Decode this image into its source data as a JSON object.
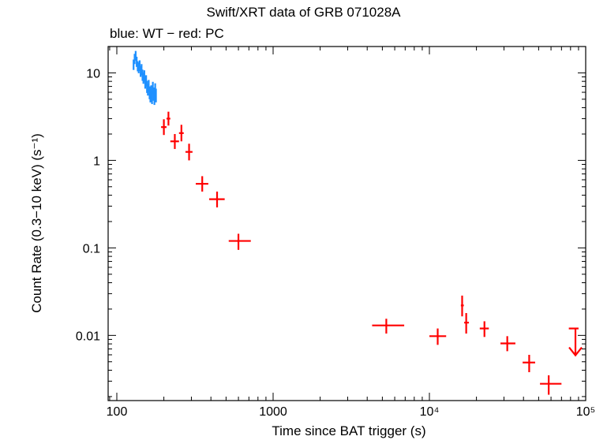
{
  "chart_data": {
    "type": "scatter",
    "title": "Swift/XRT data of GRB 071028A",
    "subtitle": "blue: WT − red: PC",
    "xlabel": "Time since BAT trigger (s)",
    "ylabel": "Count Rate (0.3−10 keV) (s⁻¹)",
    "xscale": "log",
    "yscale": "log",
    "xlim": [
      88,
      100000
    ],
    "ylim": [
      0.0018,
      20
    ],
    "x_ticks": [
      {
        "value": 100,
        "label": "100"
      },
      {
        "value": 1000,
        "label": "1000"
      },
      {
        "value": 10000,
        "label": "10⁴"
      },
      {
        "value": 100000,
        "label": "10⁵"
      }
    ],
    "y_ticks": [
      {
        "value": 0.01,
        "label": "0.01"
      },
      {
        "value": 0.1,
        "label": "0.1"
      },
      {
        "value": 1,
        "label": "1"
      },
      {
        "value": 10,
        "label": "10"
      }
    ],
    "series": [
      {
        "name": "WT",
        "color": "#1e90ff",
        "points": [
          {
            "x": 128,
            "y": 12.5,
            "xlo": 127,
            "xhi": 129,
            "ylo": 10.8,
            "yhi": 14.2
          },
          {
            "x": 130,
            "y": 14.5,
            "xlo": 129,
            "xhi": 131,
            "ylo": 12.6,
            "yhi": 16.5
          },
          {
            "x": 132,
            "y": 15.8,
            "xlo": 131,
            "xhi": 133,
            "ylo": 13.8,
            "yhi": 17.8
          },
          {
            "x": 134,
            "y": 13.5,
            "xlo": 133,
            "xhi": 135,
            "ylo": 11.7,
            "yhi": 15.3
          },
          {
            "x": 136,
            "y": 12.0,
            "xlo": 135,
            "xhi": 137,
            "ylo": 10.4,
            "yhi": 13.6
          },
          {
            "x": 138,
            "y": 11.5,
            "xlo": 137,
            "xhi": 139,
            "ylo": 9.9,
            "yhi": 13.1
          },
          {
            "x": 140,
            "y": 12.2,
            "xlo": 139,
            "xhi": 141,
            "ylo": 10.5,
            "yhi": 13.9
          },
          {
            "x": 142,
            "y": 10.5,
            "xlo": 141,
            "xhi": 143,
            "ylo": 9.0,
            "yhi": 12.0
          },
          {
            "x": 144,
            "y": 11.0,
            "xlo": 143,
            "xhi": 145,
            "ylo": 9.4,
            "yhi": 12.6
          },
          {
            "x": 146,
            "y": 9.5,
            "xlo": 145,
            "xhi": 147,
            "ylo": 8.1,
            "yhi": 10.9
          },
          {
            "x": 148,
            "y": 8.8,
            "xlo": 147,
            "xhi": 149,
            "ylo": 7.5,
            "yhi": 10.1
          },
          {
            "x": 150,
            "y": 9.3,
            "xlo": 149,
            "xhi": 151,
            "ylo": 7.9,
            "yhi": 10.7
          },
          {
            "x": 152,
            "y": 7.8,
            "xlo": 151,
            "xhi": 153,
            "ylo": 6.6,
            "yhi": 9.0
          },
          {
            "x": 154,
            "y": 8.2,
            "xlo": 153,
            "xhi": 155,
            "ylo": 7.0,
            "yhi": 9.4
          },
          {
            "x": 156,
            "y": 7.0,
            "xlo": 155,
            "xhi": 157,
            "ylo": 5.9,
            "yhi": 8.1
          },
          {
            "x": 158,
            "y": 6.5,
            "xlo": 157,
            "xhi": 159,
            "ylo": 5.5,
            "yhi": 7.5
          },
          {
            "x": 160,
            "y": 7.2,
            "xlo": 159,
            "xhi": 161,
            "ylo": 6.1,
            "yhi": 8.3
          },
          {
            "x": 162,
            "y": 6.0,
            "xlo": 161,
            "xhi": 163,
            "ylo": 5.0,
            "yhi": 7.0
          },
          {
            "x": 164,
            "y": 5.5,
            "xlo": 163,
            "xhi": 165,
            "ylo": 4.6,
            "yhi": 6.4
          },
          {
            "x": 166,
            "y": 6.2,
            "xlo": 165,
            "xhi": 167,
            "ylo": 5.2,
            "yhi": 7.2
          },
          {
            "x": 168,
            "y": 5.3,
            "xlo": 167,
            "xhi": 169,
            "ylo": 4.4,
            "yhi": 6.2
          },
          {
            "x": 170,
            "y": 6.8,
            "xlo": 169,
            "xhi": 171,
            "ylo": 5.7,
            "yhi": 7.9
          },
          {
            "x": 172,
            "y": 5.8,
            "xlo": 171,
            "xhi": 173,
            "ylo": 4.8,
            "yhi": 6.8
          },
          {
            "x": 174,
            "y": 5.2,
            "xlo": 173,
            "xhi": 175,
            "ylo": 4.3,
            "yhi": 6.1
          },
          {
            "x": 176,
            "y": 6.5,
            "xlo": 175,
            "xhi": 177,
            "ylo": 5.4,
            "yhi": 7.6
          },
          {
            "x": 178,
            "y": 5.6,
            "xlo": 177,
            "xhi": 179,
            "ylo": 4.6,
            "yhi": 6.6
          }
        ]
      },
      {
        "name": "PC",
        "color": "#ff0000",
        "points": [
          {
            "x": 200,
            "y": 2.4,
            "xlo": 192,
            "xhi": 208,
            "ylo": 1.95,
            "yhi": 2.95
          },
          {
            "x": 214,
            "y": 3.0,
            "xlo": 208,
            "xhi": 220,
            "ylo": 2.5,
            "yhi": 3.6
          },
          {
            "x": 235,
            "y": 1.65,
            "xlo": 220,
            "xhi": 250,
            "ylo": 1.35,
            "yhi": 2.0
          },
          {
            "x": 259,
            "y": 2.05,
            "xlo": 250,
            "xhi": 268,
            "ylo": 1.65,
            "yhi": 2.55
          },
          {
            "x": 290,
            "y": 1.25,
            "xlo": 275,
            "xhi": 305,
            "ylo": 1.0,
            "yhi": 1.55
          },
          {
            "x": 352,
            "y": 0.54,
            "xlo": 320,
            "xhi": 385,
            "ylo": 0.44,
            "yhi": 0.66
          },
          {
            "x": 438,
            "y": 0.36,
            "xlo": 390,
            "xhi": 490,
            "ylo": 0.29,
            "yhi": 0.44
          },
          {
            "x": 600,
            "y": 0.12,
            "xlo": 520,
            "xhi": 720,
            "ylo": 0.095,
            "yhi": 0.145
          },
          {
            "x": 5300,
            "y": 0.013,
            "xlo": 4300,
            "xhi": 6900,
            "ylo": 0.0105,
            "yhi": 0.0155
          },
          {
            "x": 11300,
            "y": 0.0098,
            "xlo": 10000,
            "xhi": 12800,
            "ylo": 0.0078,
            "yhi": 0.012
          },
          {
            "x": 16200,
            "y": 0.022,
            "xlo": 15900,
            "xhi": 16600,
            "ylo": 0.0165,
            "yhi": 0.0285
          },
          {
            "x": 17200,
            "y": 0.014,
            "xlo": 16700,
            "xhi": 17900,
            "ylo": 0.0105,
            "yhi": 0.018
          },
          {
            "x": 22500,
            "y": 0.012,
            "xlo": 21000,
            "xhi": 24000,
            "ylo": 0.0096,
            "yhi": 0.0145
          },
          {
            "x": 31500,
            "y": 0.0081,
            "xlo": 28500,
            "xhi": 35500,
            "ylo": 0.0066,
            "yhi": 0.0098
          },
          {
            "x": 43500,
            "y": 0.0049,
            "xlo": 39500,
            "xhi": 47500,
            "ylo": 0.0038,
            "yhi": 0.006
          },
          {
            "x": 58000,
            "y": 0.0028,
            "xlo": 51000,
            "xhi": 70000,
            "ylo": 0.0021,
            "yhi": 0.0035
          }
        ]
      },
      {
        "name": "PC upper limit",
        "color": "#ff0000",
        "upper_limits": [
          {
            "x": 86000,
            "y": 0.012,
            "xlo": 78000,
            "xhi": 90000
          }
        ]
      }
    ]
  }
}
